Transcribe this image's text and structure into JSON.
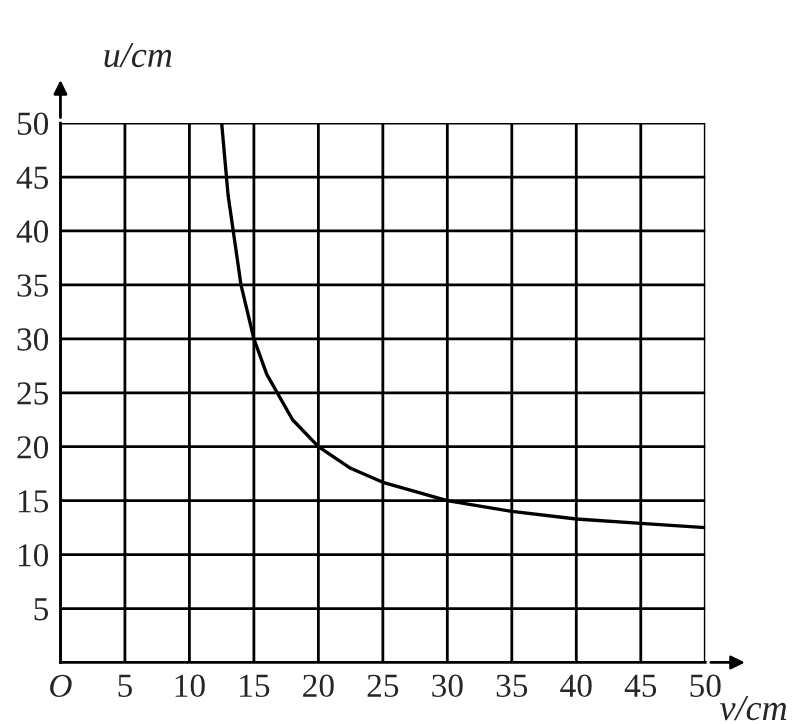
{
  "chart_data": {
    "type": "line",
    "xlabel": "v/cm",
    "ylabel": "u/cm",
    "x": [
      12.5,
      13,
      14,
      15,
      16,
      18,
      20,
      22.5,
      25,
      30,
      35,
      40,
      45,
      50
    ],
    "series": [
      {
        "color": "#000000",
        "values": [
          50,
          43.3,
          35,
          30,
          26.7,
          22.5,
          20,
          18,
          16.7,
          15,
          14,
          13.3,
          12.9,
          12.5
        ]
      }
    ],
    "xlim": [
      0,
      50
    ],
    "ylim": [
      0,
      50
    ],
    "xticks": [
      {
        "value": 0,
        "label": "O"
      },
      5,
      10,
      15,
      20,
      25,
      30,
      35,
      40,
      45,
      50
    ],
    "yticks": [
      5,
      10,
      15,
      20,
      25,
      30,
      35,
      40,
      45,
      50
    ],
    "grid": true,
    "marker": "none",
    "line_style": "solid"
  }
}
